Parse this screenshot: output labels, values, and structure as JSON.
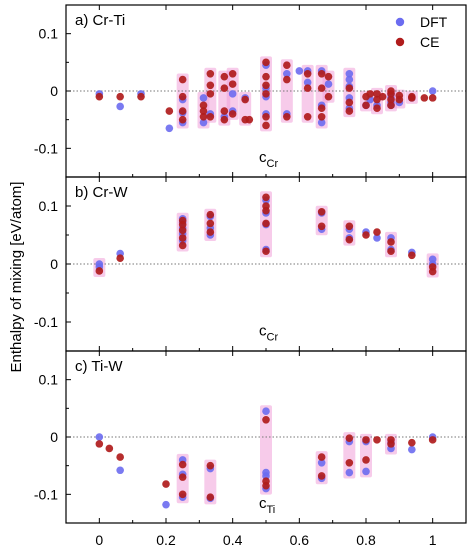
{
  "figure": {
    "ylabel": "Enthalpy of mixing [eV/atom]",
    "xticks": [
      "0",
      "0.2",
      "0.4",
      "0.6",
      "0.8",
      "1"
    ],
    "legend": [
      {
        "label": "DFT",
        "color": "#6b6cf0"
      },
      {
        "label": "CE",
        "color": "#b01c1c"
      }
    ],
    "highlight_color": "#f0a0d8"
  },
  "chart_data": [
    {
      "type": "scatter",
      "panel_label": "a) Cr-Ti",
      "xlabel_main": "c",
      "xlabel_sub": "Cr",
      "xlim": [
        -0.1,
        1.1
      ],
      "ylim": [
        -0.15,
        0.15
      ],
      "yticks": [
        "0.1",
        "0",
        "-0.1"
      ],
      "legend_position": "top-right",
      "series": [
        {
          "name": "DFT",
          "color": "#6b6cf0",
          "points": [
            [
              0,
              -0.005
            ],
            [
              0.0625,
              -0.027
            ],
            [
              0.125,
              -0.005
            ],
            [
              0.21,
              -0.065
            ],
            [
              0.25,
              -0.055
            ],
            [
              0.25,
              -0.038
            ],
            [
              0.25,
              -0.015
            ],
            [
              0.3125,
              -0.055
            ],
            [
              0.3125,
              -0.012
            ],
            [
              0.333,
              -0.04
            ],
            [
              0.375,
              -0.045
            ],
            [
              0.4,
              -0.035
            ],
            [
              0.4,
              -0.005
            ],
            [
              0.4375,
              -0.012
            ],
            [
              0.5,
              -0.04
            ],
            [
              0.5,
              -0.01
            ],
            [
              0.5,
              0.005
            ],
            [
              0.5,
              0.045
            ],
            [
              0.5625,
              -0.04
            ],
            [
              0.5625,
              0.03
            ],
            [
              0.6,
              0.035
            ],
            [
              0.625,
              0.035
            ],
            [
              0.625,
              0.015
            ],
            [
              0.667,
              -0.055
            ],
            [
              0.667,
              -0.025
            ],
            [
              0.667,
              0.035
            ],
            [
              0.6875,
              0.012
            ],
            [
              0.75,
              -0.03
            ],
            [
              0.75,
              -0.012
            ],
            [
              0.75,
              0.008
            ],
            [
              0.75,
              0.02
            ],
            [
              0.75,
              0.03
            ],
            [
              0.8,
              -0.025
            ],
            [
              0.8125,
              -0.015
            ],
            [
              0.833,
              -0.025
            ],
            [
              0.875,
              -0.025
            ],
            [
              0.875,
              -0.02
            ],
            [
              0.875,
              -0.012
            ],
            [
              0.875,
              -0.005
            ],
            [
              0.9,
              -0.02
            ],
            [
              0.9375,
              -0.012
            ],
            [
              1,
              0
            ]
          ]
        },
        {
          "name": "CE",
          "color": "#b01c1c",
          "points": [
            [
              0,
              -0.01
            ],
            [
              0.0625,
              -0.01
            ],
            [
              0.125,
              -0.01
            ],
            [
              0.21,
              -0.035
            ],
            [
              0.25,
              -0.05
            ],
            [
              0.25,
              -0.035
            ],
            [
              0.25,
              -0.01
            ],
            [
              0.25,
              0.02
            ],
            [
              0.3125,
              -0.045
            ],
            [
              0.3125,
              -0.035
            ],
            [
              0.3125,
              -0.025
            ],
            [
              0.333,
              -0.045
            ],
            [
              0.333,
              -0.005
            ],
            [
              0.333,
              0.01
            ],
            [
              0.333,
              0.03
            ],
            [
              0.375,
              -0.05
            ],
            [
              0.375,
              -0.035
            ],
            [
              0.375,
              0.005
            ],
            [
              0.375,
              0.025
            ],
            [
              0.4,
              -0.04
            ],
            [
              0.4,
              0.012
            ],
            [
              0.4,
              0.03
            ],
            [
              0.4375,
              -0.05
            ],
            [
              0.4375,
              -0.015
            ],
            [
              0.45,
              -0.05
            ],
            [
              0.5,
              -0.06
            ],
            [
              0.5,
              -0.045
            ],
            [
              0.5,
              -0.005
            ],
            [
              0.5,
              0.01
            ],
            [
              0.5,
              0.025
            ],
            [
              0.5,
              0.05
            ],
            [
              0.5625,
              -0.045
            ],
            [
              0.5625,
              0.02
            ],
            [
              0.5625,
              0.045
            ],
            [
              0.625,
              -0.045
            ],
            [
              0.625,
              0.005
            ],
            [
              0.625,
              0.03
            ],
            [
              0.667,
              -0.045
            ],
            [
              0.667,
              -0.03
            ],
            [
              0.667,
              0.005
            ],
            [
              0.667,
              0.03
            ],
            [
              0.6875,
              -0.01
            ],
            [
              0.6875,
              0.025
            ],
            [
              0.75,
              -0.035
            ],
            [
              0.75,
              -0.02
            ],
            [
              0.75,
              0.005
            ],
            [
              0.8,
              -0.025
            ],
            [
              0.8,
              -0.01
            ],
            [
              0.8125,
              -0.005
            ],
            [
              0.833,
              -0.03
            ],
            [
              0.833,
              -0.015
            ],
            [
              0.833,
              -0.005
            ],
            [
              0.85,
              -0.01
            ],
            [
              0.875,
              -0.025
            ],
            [
              0.875,
              -0.015
            ],
            [
              0.875,
              -0.005
            ],
            [
              0.875,
              0
            ],
            [
              0.9,
              -0.015
            ],
            [
              0.9,
              -0.008
            ],
            [
              0.9375,
              -0.01
            ],
            [
              0.9375,
              -0.012
            ],
            [
              0.975,
              -0.012
            ],
            [
              1,
              -0.012
            ]
          ]
        }
      ]
    },
    {
      "type": "scatter",
      "panel_label": "b) Cr-W",
      "xlabel_main": "c",
      "xlabel_sub": "Cr",
      "xlim": [
        -0.1,
        1.1
      ],
      "ylim": [
        -0.15,
        0.15
      ],
      "yticks": [
        "0.1",
        "0",
        "-0.1"
      ],
      "series": [
        {
          "name": "DFT",
          "color": "#6b6cf0",
          "points": [
            [
              0,
              -0.005
            ],
            [
              0,
              0
            ],
            [
              0.0625,
              0.018
            ],
            [
              0.25,
              0.04
            ],
            [
              0.25,
              0.052
            ],
            [
              0.25,
              0.062
            ],
            [
              0.25,
              0.072
            ],
            [
              0.25,
              0.078
            ],
            [
              0.333,
              0.05
            ],
            [
              0.333,
              0.062
            ],
            [
              0.333,
              0.082
            ],
            [
              0.5,
              0.025
            ],
            [
              0.5,
              0.068
            ],
            [
              0.5,
              0.088
            ],
            [
              0.5,
              0.11
            ],
            [
              0.667,
              0.06
            ],
            [
              0.667,
              0.088
            ],
            [
              0.75,
              0.045
            ],
            [
              0.75,
              0.06
            ],
            [
              0.8,
              0.055
            ],
            [
              0.833,
              0.045
            ],
            [
              0.875,
              0.045
            ],
            [
              0.875,
              0.025
            ],
            [
              0.9375,
              0.02
            ],
            [
              1,
              0.008
            ],
            [
              1,
              0
            ]
          ]
        },
        {
          "name": "CE",
          "color": "#b01c1c",
          "points": [
            [
              0,
              -0.012
            ],
            [
              0.0625,
              0.01
            ],
            [
              0.25,
              0.032
            ],
            [
              0.25,
              0.045
            ],
            [
              0.25,
              0.058
            ],
            [
              0.25,
              0.068
            ],
            [
              0.25,
              0.075
            ],
            [
              0.333,
              0.055
            ],
            [
              0.333,
              0.07
            ],
            [
              0.333,
              0.085
            ],
            [
              0.5,
              0.022
            ],
            [
              0.5,
              0.07
            ],
            [
              0.5,
              0.092
            ],
            [
              0.5,
              0.1
            ],
            [
              0.5,
              0.115
            ],
            [
              0.667,
              0.065
            ],
            [
              0.667,
              0.09
            ],
            [
              0.75,
              0.042
            ],
            [
              0.75,
              0.065
            ],
            [
              0.8,
              0.05
            ],
            [
              0.833,
              0.055
            ],
            [
              0.875,
              0.038
            ],
            [
              0.875,
              0.022
            ],
            [
              0.9375,
              0.015
            ],
            [
              1,
              -0.005
            ],
            [
              1,
              -0.013
            ]
          ]
        }
      ]
    },
    {
      "type": "scatter",
      "panel_label": "c) Ti-W",
      "xlabel_main": "c",
      "xlabel_sub": "Ti",
      "xlim": [
        -0.1,
        1.1
      ],
      "ylim": [
        -0.15,
        0.15
      ],
      "yticks": [
        "0.1",
        "0",
        "-0.1"
      ],
      "series": [
        {
          "name": "DFT",
          "color": "#6b6cf0",
          "points": [
            [
              0,
              0
            ],
            [
              0.0625,
              -0.058
            ],
            [
              0.2,
              -0.118
            ],
            [
              0.25,
              -0.04
            ],
            [
              0.25,
              -0.065
            ],
            [
              0.25,
              -0.105
            ],
            [
              0.333,
              -0.055
            ],
            [
              0.333,
              -0.107
            ],
            [
              0.5,
              0.045
            ],
            [
              0.5,
              -0.062
            ],
            [
              0.5,
              -0.068
            ],
            [
              0.5,
              -0.09
            ],
            [
              0.667,
              -0.045
            ],
            [
              0.667,
              -0.072
            ],
            [
              0.75,
              -0.008
            ],
            [
              0.75,
              -0.062
            ],
            [
              0.8,
              -0.06
            ],
            [
              0.8,
              -0.008
            ],
            [
              0.875,
              -0.01
            ],
            [
              0.875,
              -0.02
            ],
            [
              0.9375,
              -0.022
            ],
            [
              1,
              0
            ]
          ]
        },
        {
          "name": "CE",
          "color": "#b01c1c",
          "points": [
            [
              0,
              -0.012
            ],
            [
              0.03,
              -0.02
            ],
            [
              0.0625,
              -0.035
            ],
            [
              0.2,
              -0.082
            ],
            [
              0.25,
              -0.048
            ],
            [
              0.25,
              -0.07
            ],
            [
              0.25,
              -0.1
            ],
            [
              0.333,
              -0.05
            ],
            [
              0.333,
              -0.105
            ],
            [
              0.5,
              0.03
            ],
            [
              0.5,
              -0.077
            ],
            [
              0.5,
              -0.085
            ],
            [
              0.667,
              -0.035
            ],
            [
              0.667,
              -0.068
            ],
            [
              0.75,
              -0.002
            ],
            [
              0.75,
              -0.045
            ],
            [
              0.8,
              -0.04
            ],
            [
              0.8,
              -0.005
            ],
            [
              0.833,
              -0.005
            ],
            [
              0.875,
              -0.005
            ],
            [
              0.875,
              -0.012
            ],
            [
              0.9375,
              -0.01
            ],
            [
              1,
              -0.005
            ]
          ]
        }
      ]
    }
  ]
}
